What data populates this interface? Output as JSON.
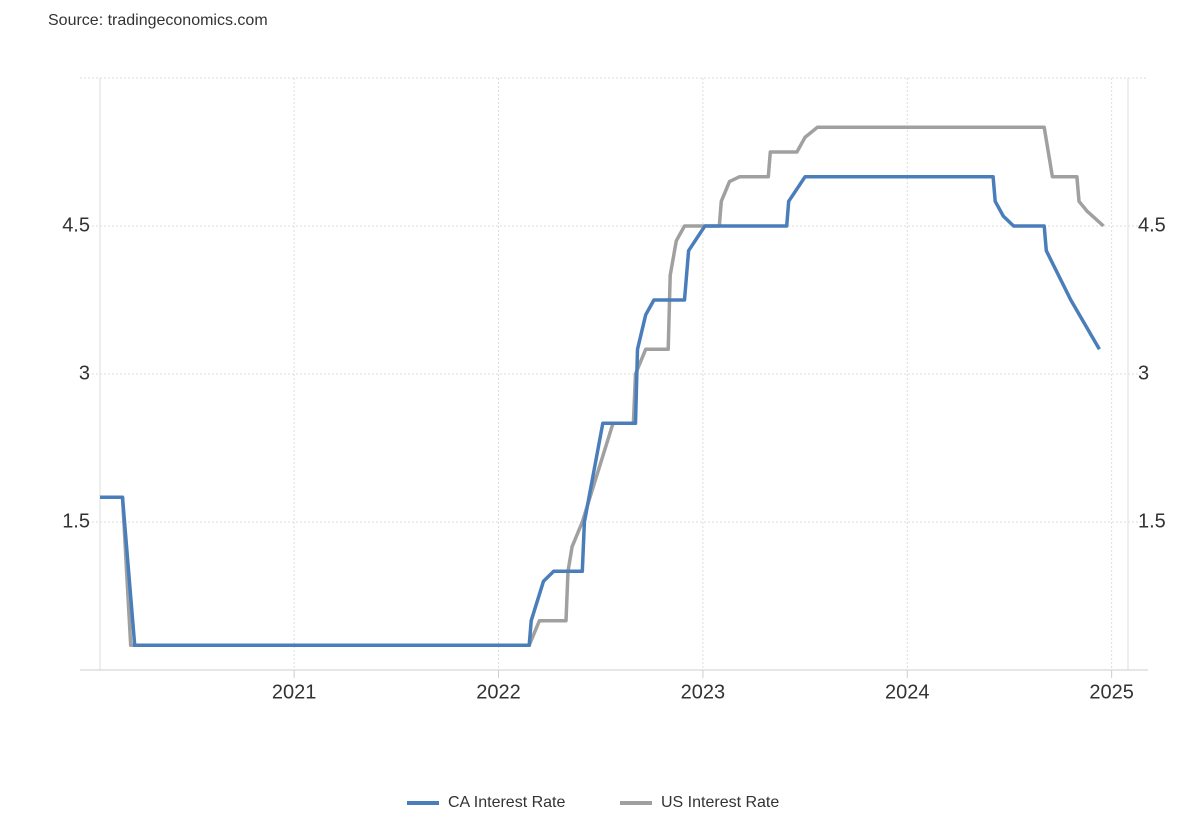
{
  "chart_data": {
    "type": "line",
    "source": "Source: tradingeconomics.com",
    "xlim": [
      2020.05,
      2025.08
    ],
    "xticks": [
      2021,
      2022,
      2023,
      2024,
      2025
    ],
    "ylim": [
      0,
      6
    ],
    "yticks": [
      1.5,
      3,
      4.5
    ],
    "y2lim": [
      0,
      6
    ],
    "y2ticks": [
      1.5,
      3,
      4.5
    ],
    "grid": true,
    "legend": "bottom",
    "series": [
      {
        "name": "CA Interest Rate",
        "color": "#4a7ebb",
        "x": [
          2020.05,
          2020.16,
          2020.22,
          2022.15,
          2022.16,
          2022.22,
          2022.27,
          2022.41,
          2022.42,
          2022.51,
          2022.67,
          2022.68,
          2022.72,
          2022.76,
          2022.91,
          2022.93,
          2023.01,
          2023.41,
          2023.42,
          2023.5,
          2024.42,
          2024.43,
          2024.47,
          2024.52,
          2024.67,
          2024.68,
          2024.8,
          2024.94
        ],
        "values": [
          1.75,
          1.75,
          0.25,
          0.25,
          0.5,
          0.9,
          1.0,
          1.0,
          1.5,
          2.5,
          2.5,
          3.25,
          3.6,
          3.75,
          3.75,
          4.25,
          4.5,
          4.5,
          4.75,
          5.0,
          5.0,
          4.75,
          4.6,
          4.5,
          4.5,
          4.25,
          3.75,
          3.25
        ]
      },
      {
        "name": "US Interest Rate",
        "color": "#a0a0a0",
        "x": [
          2020.05,
          2020.16,
          2020.2,
          2022.15,
          2022.2,
          2022.33,
          2022.34,
          2022.36,
          2022.41,
          2022.56,
          2022.66,
          2022.67,
          2022.72,
          2022.83,
          2022.84,
          2022.87,
          2022.91,
          2023.08,
          2023.09,
          2023.13,
          2023.18,
          2023.32,
          2023.33,
          2023.46,
          2023.5,
          2023.56,
          2024.67,
          2024.71,
          2024.83,
          2024.84,
          2024.88,
          2024.96
        ],
        "values": [
          1.75,
          1.75,
          0.25,
          0.25,
          0.5,
          0.5,
          1.0,
          1.25,
          1.5,
          2.5,
          2.5,
          3.0,
          3.25,
          3.25,
          4.0,
          4.35,
          4.5,
          4.5,
          4.75,
          4.95,
          5.0,
          5.0,
          5.25,
          5.25,
          5.4,
          5.5,
          5.5,
          5.0,
          5.0,
          4.75,
          4.65,
          4.5
        ]
      }
    ]
  }
}
